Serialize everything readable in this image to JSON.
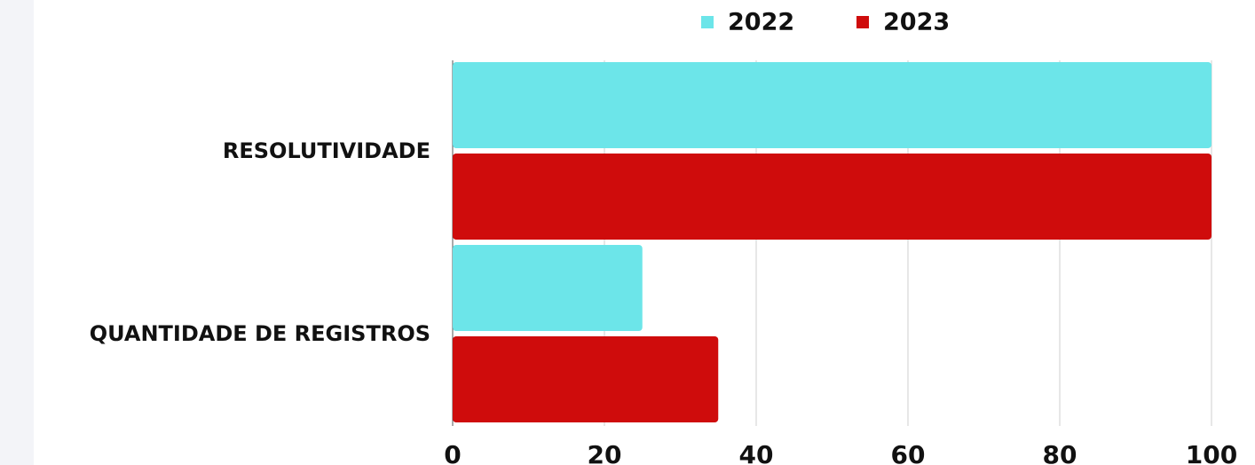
{
  "chart_data": {
    "type": "bar",
    "orientation": "horizontal",
    "categories": [
      "RESOLUTIVIDADE",
      "QUANTIDADE DE REGISTROS"
    ],
    "series": [
      {
        "name": "2022",
        "color": "#6ce5e9",
        "values": [
          100,
          25
        ]
      },
      {
        "name": "2023",
        "color": "#cf0c0c",
        "values": [
          100,
          35
        ]
      }
    ],
    "xlim": [
      0,
      100
    ],
    "xticks": [
      0,
      20,
      40,
      60,
      80,
      100
    ],
    "grid": true,
    "legend": "top"
  }
}
